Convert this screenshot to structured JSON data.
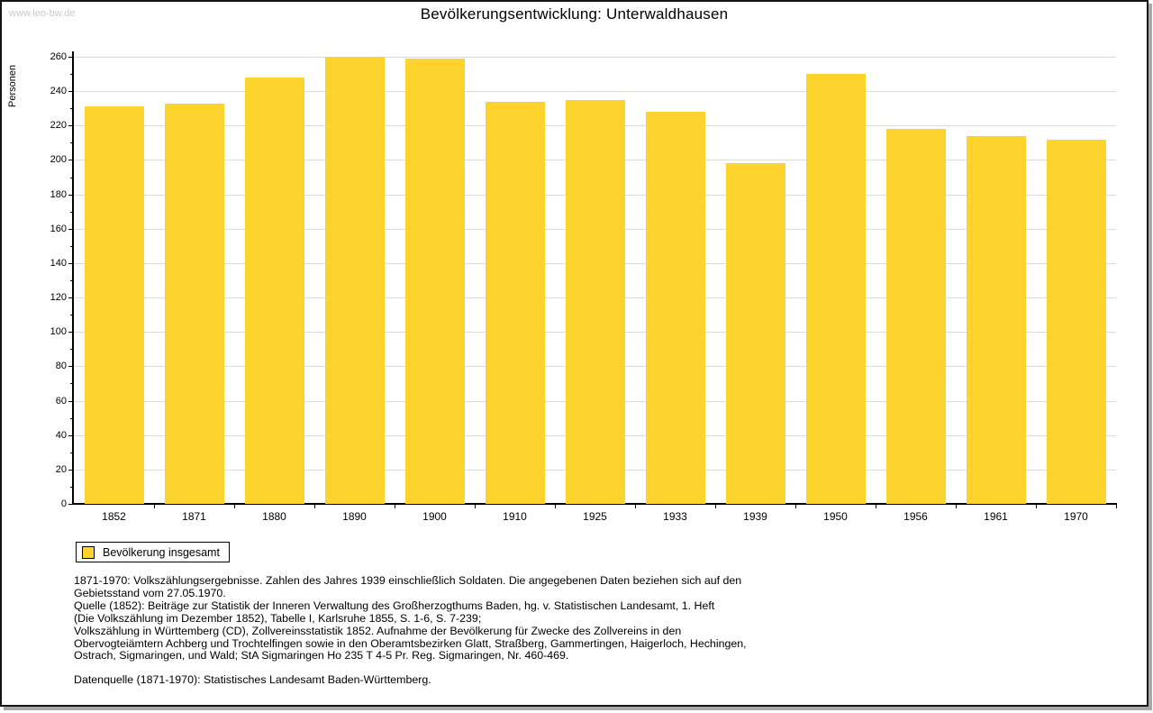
{
  "page": {
    "watermark": "www.leo-bw.de",
    "title": "Bevölkerungsentwicklung: Unterwaldhausen"
  },
  "chart_data": {
    "type": "bar",
    "title": "Bevölkerungsentwicklung: Unterwaldhausen",
    "ylabel": "Personen",
    "xlabel": "",
    "categories": [
      "1852",
      "1871",
      "1880",
      "1890",
      "1900",
      "1910",
      "1925",
      "1933",
      "1939",
      "1950",
      "1956",
      "1961",
      "1970"
    ],
    "values": [
      231,
      233,
      248,
      260,
      259,
      234,
      235,
      228,
      198,
      250,
      218,
      214,
      212
    ],
    "series": [
      {
        "name": "Bevölkerung insgesamt",
        "values": [
          231,
          233,
          248,
          260,
          259,
          234,
          235,
          228,
          198,
          250,
          218,
          214,
          212
        ]
      }
    ],
    "ylim": [
      0,
      260
    ],
    "y_major_step": 20,
    "y_minor_step": 10,
    "grid": "horizontal-major",
    "bar_color": "#fdd32d",
    "legend_position": "bottom-left"
  },
  "legend": {
    "label": "Bevölkerung insgesamt"
  },
  "footer": {
    "notes": [
      "1871-1970: Volkszählungsergebnisse. Zahlen des Jahres 1939 einschließlich Soldaten. Die angegebenen Daten beziehen sich auf den",
      "Gebietsstand vom 27.05.1970.",
      "Quelle (1852): Beiträge zur Statistik der Inneren Verwaltung des Großherzogthums Baden, hg. v. Statistischen Landesamt, 1. Heft",
      "(Die Volkszählung im Dezember 1852), Tabelle I, Karlsruhe 1855, S. 1-6, S. 7-239;",
      "Volkszählung in Württemberg (CD), Zollvereinsstatistik 1852. Aufnahme der Bevölkerung für Zwecke des Zollvereins in den",
      "Obervogteiämtern Achberg und Trochtelfingen sowie in den Oberamtsbezirken Glatt, Straßberg, Gammertingen, Haigerloch, Hechingen,",
      "Ostrach, Sigmaringen, und Wald; StA Sigmaringen Ho 235 T 4-5 Pr. Reg. Sigmaringen, Nr. 460-469."
    ],
    "datasource": "Datenquelle (1871-1970): Statistisches Landesamt Baden-Württemberg."
  },
  "colors": {
    "bar": "#fdd32d",
    "gridline": "#dbdbdb",
    "axis": "#000000",
    "watermark": "#c9c9c9",
    "shadow": "#a8a8a8"
  }
}
